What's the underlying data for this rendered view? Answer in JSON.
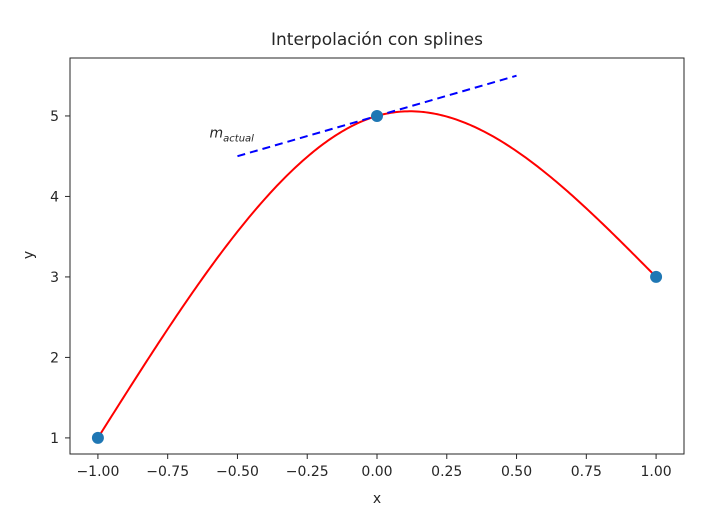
{
  "chart_data": {
    "type": "line",
    "title": "Interpolación con splines",
    "xlabel": "x",
    "ylabel": "y",
    "xlim": [
      -1.1,
      1.1
    ],
    "ylim": [
      0.8,
      5.72
    ],
    "xticks": [
      -1.0,
      -0.75,
      -0.5,
      -0.25,
      0.0,
      0.25,
      0.5,
      0.75,
      1.0
    ],
    "xtick_labels": [
      "−1.00",
      "−0.75",
      "−0.50",
      "−0.25",
      "0.00",
      "0.25",
      "0.50",
      "0.75",
      "1.00"
    ],
    "yticks": [
      1,
      2,
      3,
      4,
      5
    ],
    "ytick_labels": [
      "1",
      "2",
      "3",
      "4",
      "5"
    ],
    "grid": false,
    "series": [
      {
        "kind": "scatter",
        "color": "#1f77b4",
        "x": [
          -1.0,
          0.0,
          1.0
        ],
        "y": [
          1.0,
          5.0,
          3.0
        ]
      },
      {
        "kind": "spline",
        "color": "#ff0000",
        "x": [
          -1.0,
          0.0,
          1.0
        ],
        "y": [
          1.0,
          5.0,
          3.0
        ],
        "slope_at_middle": 1.0
      },
      {
        "kind": "tangent",
        "color": "#0000ff",
        "linestyle": "dashed",
        "x": [
          -0.5,
          0.5
        ],
        "y": [
          4.5,
          5.5
        ]
      }
    ],
    "annotations": [
      {
        "text": "m",
        "subscript": "actual",
        "x": -0.6,
        "y": 4.73
      }
    ]
  }
}
